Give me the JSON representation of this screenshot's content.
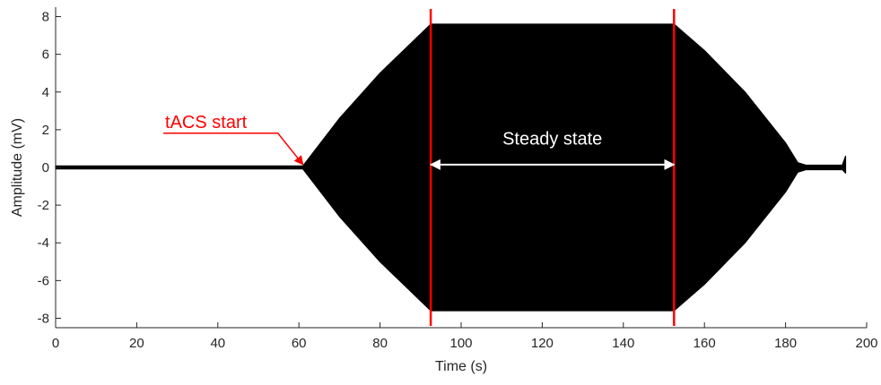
{
  "chart_data": {
    "type": "line",
    "title": "",
    "xlabel": "Time (s)",
    "ylabel": "Amplitude (mV)",
    "xlim": [
      0,
      200
    ],
    "ylim": [
      -8.5,
      8.5
    ],
    "x_ticks": [
      0,
      20,
      40,
      60,
      80,
      100,
      120,
      140,
      160,
      180,
      200
    ],
    "y_ticks": [
      -8,
      -6,
      -4,
      -2,
      0,
      2,
      4,
      6,
      8
    ],
    "grid": false,
    "series": [
      {
        "color": "#000000",
        "envelope_x": [
          0,
          61,
          70,
          80,
          92.5,
          152.5,
          160,
          170,
          180,
          183,
          185,
          194,
          194.8
        ],
        "envelope_upper": [
          0.08,
          0.08,
          2.6,
          5.0,
          7.6,
          7.6,
          6.2,
          4.0,
          1.3,
          0.25,
          0.12,
          0.12,
          0.6
        ],
        "envelope_lower": [
          -0.08,
          -0.08,
          -2.6,
          -5.0,
          -7.6,
          -7.6,
          -6.2,
          -4.0,
          -1.3,
          -0.25,
          -0.12,
          -0.12,
          -0.3
        ]
      }
    ],
    "vertical_lines": [
      {
        "x": 92.5,
        "color": "#ff0000"
      },
      {
        "x": 152.5,
        "color": "#ff0000"
      }
    ],
    "annotations": [
      {
        "text": "tACS start",
        "color": "#ff0000",
        "x": 27,
        "y": 2.1,
        "arrow_to": [
          61,
          0.15
        ]
      },
      {
        "text": "Steady state",
        "color": "#ffffff",
        "x": 122.5,
        "y": 1.2,
        "arrow_from": 92.5,
        "arrow_to": 152.5,
        "arrow_y": 0.15
      }
    ]
  }
}
